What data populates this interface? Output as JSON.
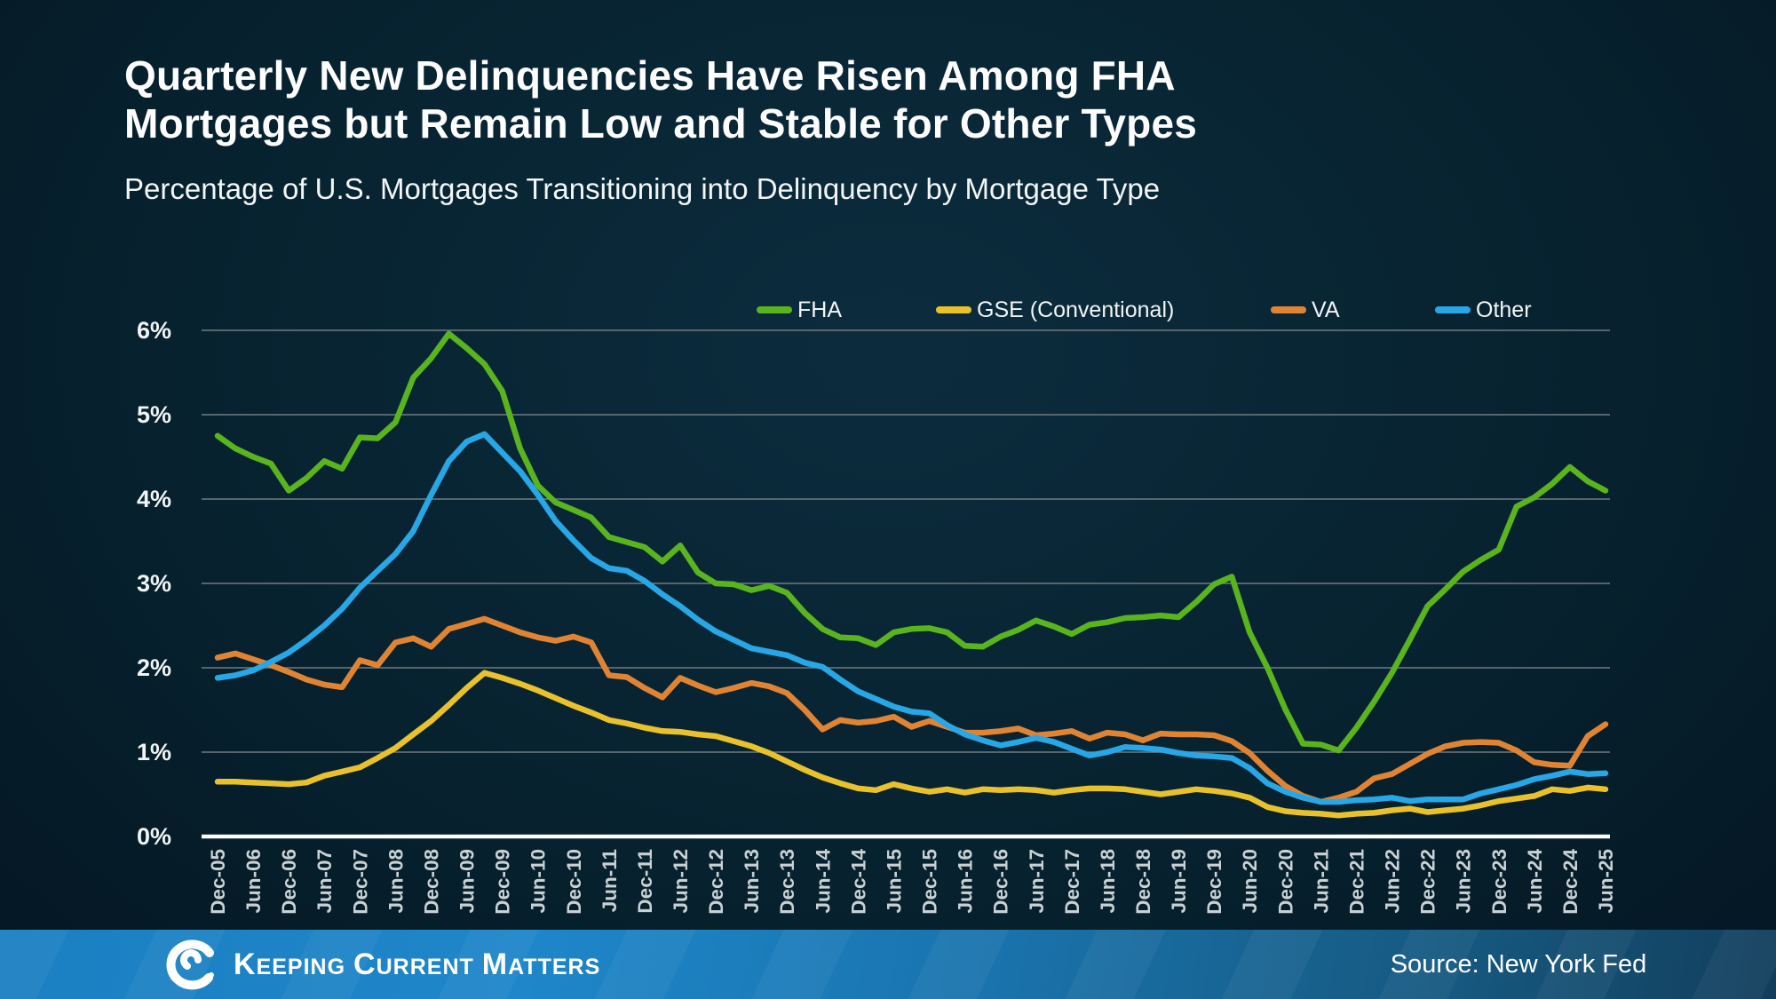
{
  "title": {
    "line1": "Quarterly New Delinquencies Have Risen Among FHA",
    "line2": "Mortgages but Remain Low and Stable for Other Types"
  },
  "subtitle": "Percentage of U.S. Mortgages Transitioning into Delinquency by Mortgage Type",
  "colors": {
    "background": "#07222f",
    "gridline": "#707c82",
    "axis_line": "#ffffff",
    "x_tick_text": "#c9d1d5",
    "y_tick_text": "#f0f4f5",
    "footer_blue": "#1c80c2",
    "fha_green": "#5ab41e",
    "gse_yellow": "#e8c12d",
    "va_orange": "#e08434",
    "other_blue": "#28a7e6"
  },
  "chart_data": {
    "type": "line",
    "title": "",
    "xlabel": "",
    "ylabel": "",
    "ylim": [
      0,
      6
    ],
    "grid": true,
    "legend_position": "top",
    "yticks": [
      {
        "label": "6%",
        "value": 6
      },
      {
        "label": "5%",
        "value": 5
      },
      {
        "label": "4%",
        "value": 4
      },
      {
        "label": "3%",
        "value": 3
      },
      {
        "label": "2%",
        "value": 2
      },
      {
        "label": "1%",
        "value": 1
      },
      {
        "label": "0%",
        "value": 0
      }
    ],
    "x_tick_labels": [
      "Dec-05",
      "Jun-06",
      "Dec-06",
      "Jun-07",
      "Dec-07",
      "Jun-08",
      "Dec-08",
      "Jun-09",
      "Dec-09",
      "Jun-10",
      "Dec-10",
      "Jun-11",
      "Dec-11",
      "Jun-12",
      "Dec-12",
      "Jun-13",
      "Dec-13",
      "Jun-14",
      "Dec-14",
      "Jun-15",
      "Dec-15",
      "Jun-16",
      "Dec-16",
      "Jun-17",
      "Dec-17",
      "Jun-18",
      "Dec-18",
      "Jun-19",
      "Dec-19",
      "Jun-20",
      "Dec-20",
      "Jun-21",
      "Dec-21",
      "Jun-22",
      "Dec-22",
      "Jun-23",
      "Dec-23",
      "Jun-24",
      "Dec-24",
      "Jun-25"
    ],
    "points_per_label_interval": 2,
    "series": [
      {
        "name": "FHA",
        "color": "#5ab41e",
        "values": [
          4.75,
          4.6,
          4.5,
          4.42,
          4.1,
          4.25,
          4.45,
          4.36,
          4.73,
          4.72,
          4.91,
          5.44,
          5.67,
          5.96,
          5.79,
          5.6,
          5.28,
          4.6,
          4.16,
          3.96,
          3.87,
          3.78,
          3.55,
          3.49,
          3.43,
          3.26,
          3.45,
          3.13,
          3.0,
          2.99,
          2.92,
          2.97,
          2.89,
          2.65,
          2.46,
          2.36,
          2.35,
          2.27,
          2.42,
          2.46,
          2.47,
          2.42,
          2.26,
          2.25,
          2.37,
          2.45,
          2.56,
          2.49,
          2.4,
          2.51,
          2.54,
          2.59,
          2.6,
          2.62,
          2.6,
          2.78,
          2.99,
          3.08,
          2.42,
          2.0,
          1.51,
          1.1,
          1.09,
          1.02,
          1.29,
          1.6,
          1.94,
          2.33,
          2.73,
          2.93,
          3.14,
          3.28,
          3.4,
          3.91,
          4.02,
          4.18,
          4.38,
          4.21,
          4.1
        ]
      },
      {
        "name": "GSE (Conventional)",
        "color": "#e8c12d",
        "values": [
          0.65,
          0.65,
          0.64,
          0.63,
          0.62,
          0.64,
          0.72,
          0.77,
          0.82,
          0.93,
          1.05,
          1.21,
          1.37,
          1.56,
          1.76,
          1.94,
          1.88,
          1.81,
          1.73,
          1.64,
          1.55,
          1.47,
          1.38,
          1.34,
          1.29,
          1.25,
          1.24,
          1.21,
          1.19,
          1.13,
          1.07,
          0.99,
          0.89,
          0.79,
          0.7,
          0.63,
          0.57,
          0.55,
          0.62,
          0.57,
          0.53,
          0.56,
          0.52,
          0.56,
          0.55,
          0.56,
          0.55,
          0.52,
          0.55,
          0.57,
          0.57,
          0.56,
          0.53,
          0.5,
          0.53,
          0.56,
          0.54,
          0.51,
          0.46,
          0.35,
          0.3,
          0.28,
          0.27,
          0.25,
          0.27,
          0.28,
          0.31,
          0.33,
          0.29,
          0.31,
          0.33,
          0.37,
          0.42,
          0.45,
          0.48,
          0.56,
          0.54,
          0.58,
          0.56
        ]
      },
      {
        "name": "VA",
        "color": "#e08434",
        "values": [
          2.12,
          2.17,
          2.1,
          2.03,
          1.95,
          1.86,
          1.8,
          1.77,
          2.09,
          2.03,
          2.3,
          2.35,
          2.25,
          2.46,
          2.52,
          2.58,
          2.5,
          2.42,
          2.36,
          2.32,
          2.37,
          2.3,
          1.91,
          1.89,
          1.76,
          1.65,
          1.88,
          1.79,
          1.71,
          1.76,
          1.82,
          1.78,
          1.7,
          1.5,
          1.27,
          1.38,
          1.35,
          1.37,
          1.42,
          1.3,
          1.37,
          1.3,
          1.23,
          1.23,
          1.25,
          1.28,
          1.2,
          1.22,
          1.25,
          1.16,
          1.23,
          1.21,
          1.14,
          1.22,
          1.21,
          1.21,
          1.2,
          1.13,
          0.99,
          0.78,
          0.6,
          0.48,
          0.41,
          0.46,
          0.53,
          0.69,
          0.74,
          0.86,
          0.98,
          1.07,
          1.11,
          1.12,
          1.11,
          1.02,
          0.88,
          0.85,
          0.84,
          1.19,
          1.33
        ]
      },
      {
        "name": "Other",
        "color": "#28a7e6",
        "values": [
          1.88,
          1.91,
          1.97,
          2.07,
          2.18,
          2.33,
          2.5,
          2.7,
          2.95,
          3.15,
          3.35,
          3.62,
          4.05,
          4.45,
          4.68,
          4.77,
          4.55,
          4.33,
          4.05,
          3.74,
          3.51,
          3.3,
          3.18,
          3.15,
          3.03,
          2.87,
          2.73,
          2.57,
          2.43,
          2.33,
          2.23,
          2.19,
          2.15,
          2.06,
          2.01,
          1.86,
          1.72,
          1.63,
          1.54,
          1.48,
          1.46,
          1.32,
          1.21,
          1.14,
          1.08,
          1.12,
          1.17,
          1.12,
          1.04,
          0.96,
          1.0,
          1.06,
          1.05,
          1.03,
          0.99,
          0.96,
          0.95,
          0.93,
          0.81,
          0.63,
          0.53,
          0.46,
          0.41,
          0.41,
          0.43,
          0.44,
          0.46,
          0.42,
          0.44,
          0.44,
          0.44,
          0.51,
          0.56,
          0.61,
          0.68,
          0.72,
          0.77,
          0.74,
          0.75
        ]
      }
    ]
  },
  "footer": {
    "brand_words": [
      {
        "initial": "K",
        "rest": "EEPING"
      },
      {
        "initial": "C",
        "rest": "URRENT"
      },
      {
        "initial": "M",
        "rest": "ATTERS"
      }
    ],
    "source": "Source: New York Fed"
  }
}
